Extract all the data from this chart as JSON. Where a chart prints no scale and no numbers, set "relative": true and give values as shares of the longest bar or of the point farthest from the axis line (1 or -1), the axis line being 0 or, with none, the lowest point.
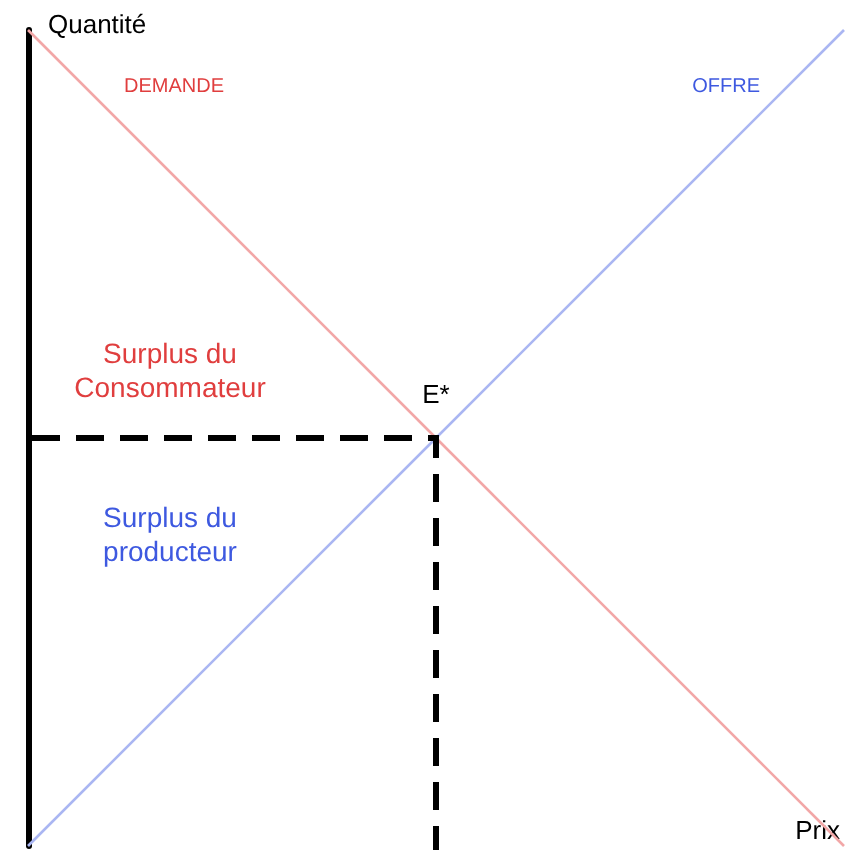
{
  "chart_data": {
    "type": "line",
    "relative": true,
    "xlabel": "Prix",
    "ylabel": "Quantité",
    "tick_labels": false,
    "grid": false,
    "legend": false,
    "marker": "none",
    "categories": [
      null,
      null,
      null
    ],
    "series": [
      {
        "name": "DEMANDE",
        "color": "#f2a7a7",
        "values": [
          1,
          0.5,
          0
        ]
      },
      {
        "name": "OFFRE",
        "color": "#aab6f2",
        "values": [
          0,
          0.5,
          1
        ]
      }
    ],
    "annotations": [
      "Surplus du Consommateur",
      "Surplus du producteur",
      {
        "text": "E*",
        "y": 0.5
      }
    ]
  }
}
